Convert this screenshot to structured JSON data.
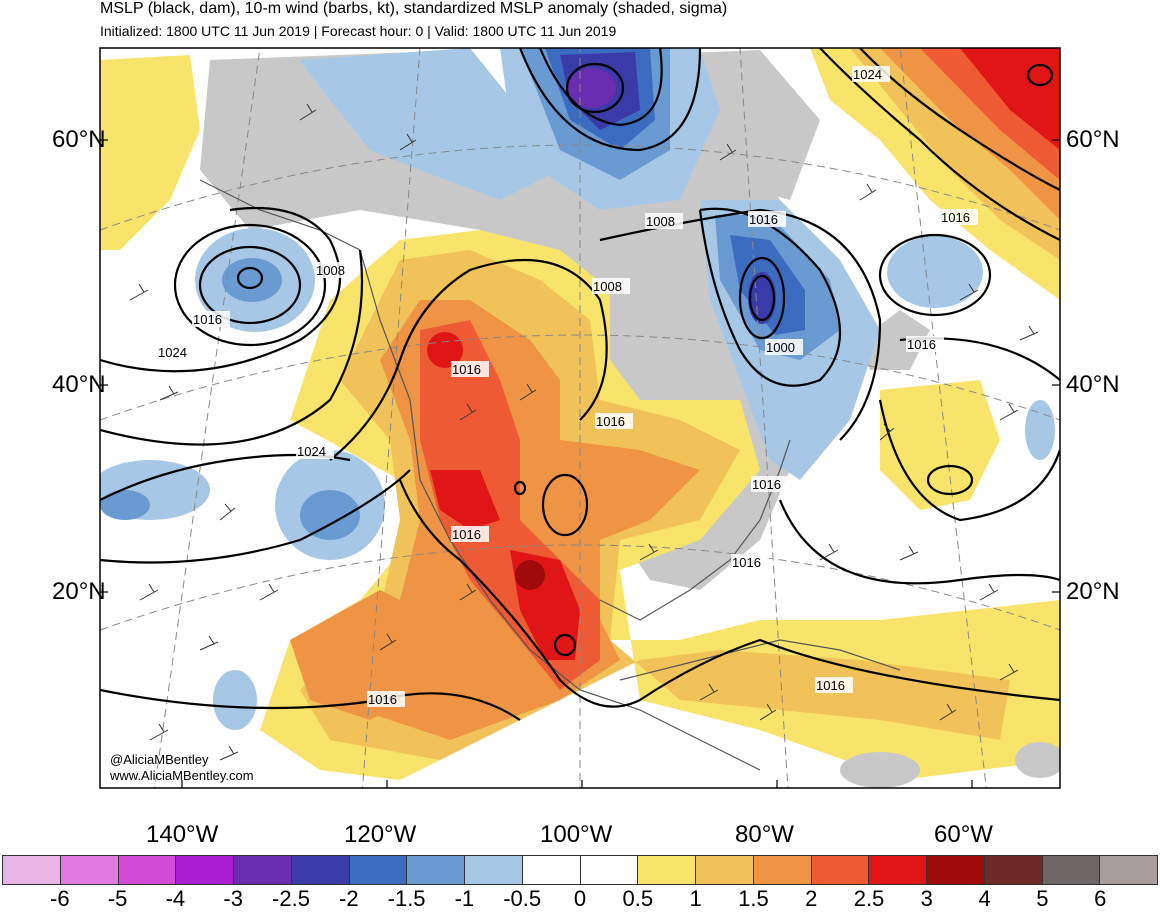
{
  "header": {
    "title": "MSLP (black, dam), 10-m wind (barbs, kt), standardized MSLP anomaly (shaded, sigma)",
    "subtitle": "Initialized: 1800 UTC 11 Jun 2019 | Forecast hour: 0 | Valid: 1800 UTC 11 Jun 2019"
  },
  "lat_labels": [
    "60°N",
    "40°N",
    "20°N"
  ],
  "lon_labels": [
    "140°W",
    "120°W",
    "100°W",
    "80°W",
    "60°W"
  ],
  "isobar_labels": [
    "1024",
    "1008",
    "1016",
    "1016",
    "1008",
    "1008",
    "1016",
    "1016",
    "1024",
    "1000",
    "1016",
    "1016",
    "1024",
    "1016",
    "1016",
    "1016",
    "1016"
  ],
  "credit": {
    "handle": "@AliciaMBentley",
    "website": "www.AliciaMBentley.com"
  },
  "colorbar": {
    "labels": [
      "-6",
      "-5",
      "-4",
      "-3",
      "-2.5",
      "-2",
      "-1.5",
      "-1",
      "-0.5",
      "0",
      "0.5",
      "1",
      "1.5",
      "2",
      "2.5",
      "3",
      "4",
      "5",
      "6"
    ],
    "colors": [
      "#e8b4e4",
      "#e07ae0",
      "#d24ad8",
      "#a81ed0",
      "#6a2db0",
      "#3a3aa8",
      "#3b6cc0",
      "#6a9ad2",
      "#a6c8e6",
      "#ffffff",
      "#ffffff",
      "#f8e46a",
      "#f2c25a",
      "#ee9444",
      "#ee5a34",
      "#e01616",
      "#a00a0a",
      "#6e2a26",
      "#6e6666",
      "#a89c9c"
    ]
  },
  "colors": {
    "land_gray": "#c8c8c8",
    "contour": "#000000"
  }
}
